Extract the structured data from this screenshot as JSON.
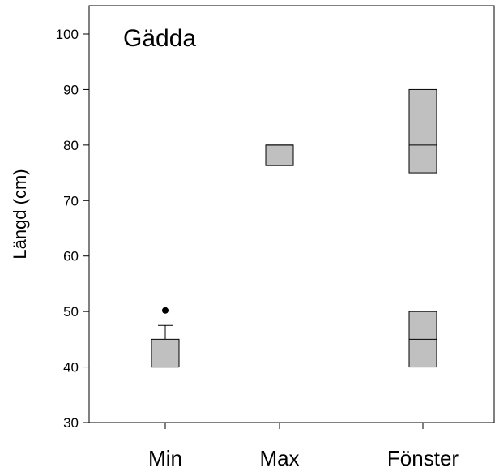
{
  "chart_data": {
    "type": "box",
    "title": "Gädda",
    "xlabel": "",
    "ylabel": "Längd (cm)",
    "ylim": [
      30,
      104
    ],
    "yticks": [
      30,
      40,
      50,
      60,
      70,
      80,
      90,
      100
    ],
    "grid": false,
    "categories": [
      "Min",
      "Max",
      "Fönster"
    ],
    "boxes": [
      {
        "category": "Min",
        "q1": 40,
        "median": 40,
        "q3": 45,
        "whisker_high": 47.5,
        "outliers": [
          50.2
        ]
      },
      {
        "category": "Max",
        "q1": 76.3,
        "median": 80,
        "q3": 80
      },
      {
        "category": "Fönster",
        "q1": 40,
        "median": 45,
        "q3": 50
      },
      {
        "category": "Fönster",
        "q1": 75,
        "median": 80,
        "q3": 90
      }
    ],
    "colors": {
      "box_fill": "#c0c0c0",
      "stroke": "#000000"
    }
  }
}
